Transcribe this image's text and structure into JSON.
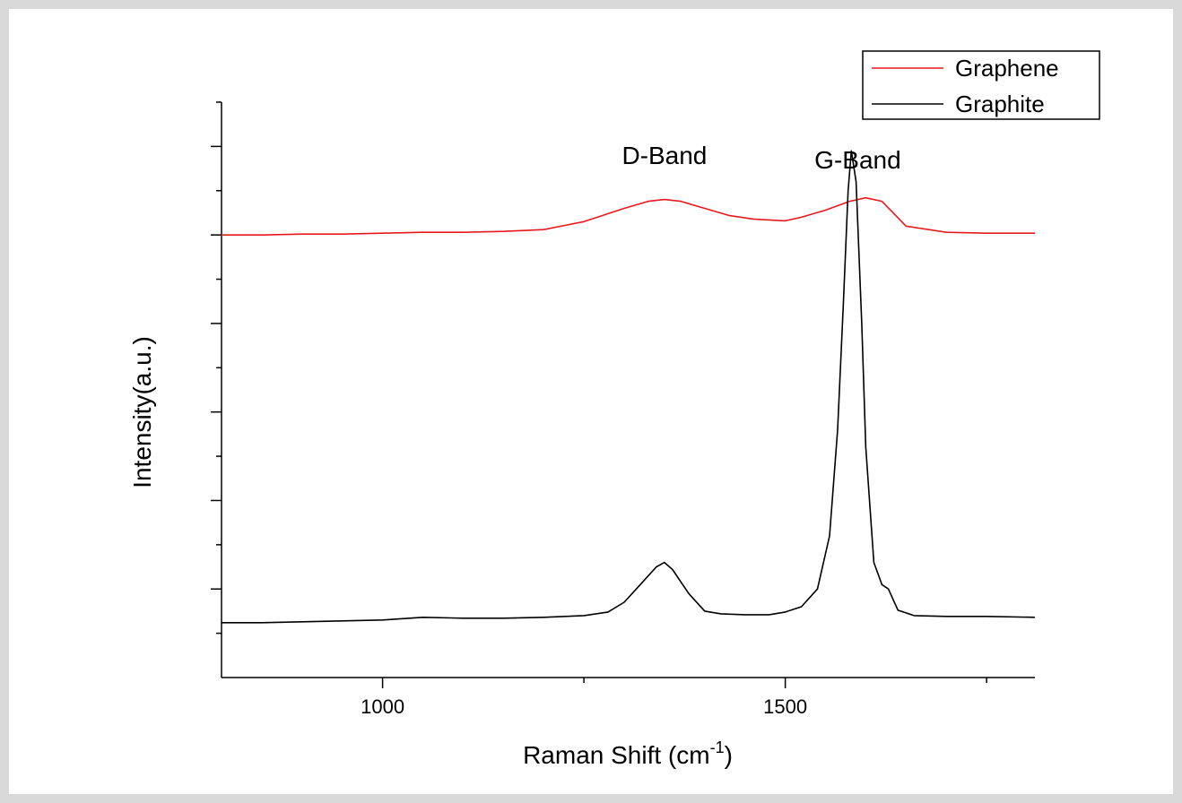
{
  "chart_data": {
    "type": "line",
    "xlabel": "Raman Shift (cm",
    "xlabel_sup": "-1",
    "xlabel_close": ")",
    "ylabel": "Intensity(a.u.)",
    "xlim": [
      800,
      1810
    ],
    "ylim": [
      0,
      6.5
    ],
    "x_ticks": [
      1000,
      1500
    ],
    "x_tick_labels": [
      "1000",
      "1500"
    ],
    "grid": false,
    "legend_position": "top-right",
    "annotations": [
      {
        "text": "D-Band",
        "x": 1350,
        "y": 5.8
      },
      {
        "text": "G-Band",
        "x": 1590,
        "y": 5.75
      }
    ],
    "series": [
      {
        "name": "Graphene",
        "color": "#e8191c",
        "x": [
          800,
          850,
          900,
          950,
          1000,
          1050,
          1100,
          1150,
          1200,
          1250,
          1300,
          1330,
          1350,
          1370,
          1400,
          1430,
          1460,
          1500,
          1520,
          1550,
          1580,
          1600,
          1620,
          1650,
          1700,
          1750,
          1810
        ],
        "y": [
          5.0,
          5.0,
          5.01,
          5.01,
          5.02,
          5.03,
          5.03,
          5.04,
          5.06,
          5.15,
          5.3,
          5.38,
          5.4,
          5.38,
          5.3,
          5.22,
          5.18,
          5.16,
          5.2,
          5.28,
          5.38,
          5.42,
          5.38,
          5.1,
          5.03,
          5.02,
          5.02
        ]
      },
      {
        "name": "Graphite",
        "color": "#000000",
        "x": [
          800,
          850,
          900,
          950,
          1000,
          1050,
          1100,
          1150,
          1200,
          1250,
          1280,
          1300,
          1320,
          1340,
          1350,
          1360,
          1380,
          1400,
          1420,
          1450,
          1480,
          1500,
          1520,
          1540,
          1555,
          1565,
          1572,
          1578,
          1582,
          1588,
          1595,
          1600,
          1610,
          1620,
          1628,
          1640,
          1660,
          1700,
          1750,
          1810
        ],
        "y": [
          0.62,
          0.62,
          0.63,
          0.64,
          0.65,
          0.68,
          0.67,
          0.67,
          0.68,
          0.7,
          0.74,
          0.85,
          1.05,
          1.25,
          1.3,
          1.22,
          0.95,
          0.75,
          0.72,
          0.71,
          0.71,
          0.74,
          0.8,
          1.0,
          1.6,
          2.8,
          4.2,
          5.5,
          5.95,
          5.6,
          4.0,
          2.6,
          1.3,
          1.05,
          1.0,
          0.76,
          0.7,
          0.69,
          0.69,
          0.68
        ]
      }
    ]
  }
}
